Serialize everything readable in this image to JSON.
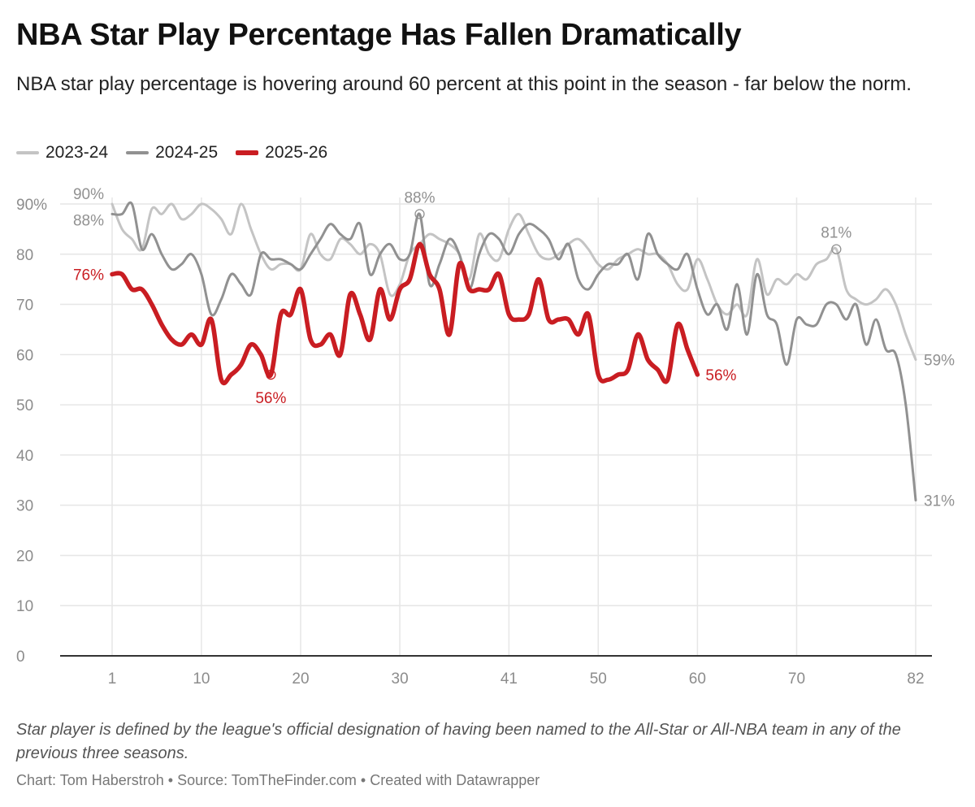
{
  "header": {
    "title": "NBA Star Play Percentage Has Fallen Dramatically",
    "subtitle": "NBA star play percentage is hovering around 60 percent at this point in the season - far below the norm."
  },
  "notes": "Star player is defined by the league's official designation of having been named to the All-Star or All-NBA team in any of the previous three seasons.",
  "footer": {
    "chart_credit": "Chart: Tom Haberstroh",
    "source": "Source: TomTheFinder.com",
    "tool": "Created with Datawrapper",
    "separator": "•"
  },
  "colors": {
    "s2324": "#c4c4c4",
    "s2425": "#919191",
    "s2526": "#c91d22",
    "grid": "#e6e6e6",
    "axis": "#333333",
    "tick": "#8c8c8c"
  },
  "chart_data": {
    "type": "line",
    "xlabel": "",
    "ylabel": "",
    "xlim": [
      1,
      82
    ],
    "ylim": [
      0,
      90
    ],
    "y_ticks": [
      0,
      10,
      20,
      30,
      40,
      50,
      60,
      70,
      80,
      90
    ],
    "y_tick_labels": [
      "0",
      "10",
      "20",
      "30",
      "40",
      "50",
      "60",
      "70",
      "80",
      "90%"
    ],
    "x_ticks": [
      1,
      10,
      20,
      30,
      41,
      50,
      60,
      70,
      82
    ],
    "x_tick_labels": [
      "1",
      "10",
      "20",
      "30",
      "41",
      "50",
      "60",
      "70",
      "82"
    ],
    "grid": true,
    "legend_position": "top-left",
    "series": [
      {
        "name": "2023-24",
        "color_key": "s2324",
        "width": "thin",
        "points": [
          [
            1,
            90
          ],
          [
            2,
            85
          ],
          [
            3,
            83
          ],
          [
            4,
            81
          ],
          [
            5,
            89
          ],
          [
            6,
            88
          ],
          [
            7,
            90
          ],
          [
            8,
            87
          ],
          [
            9,
            88
          ],
          [
            10,
            90
          ],
          [
            11,
            89
          ],
          [
            12,
            87
          ],
          [
            13,
            84
          ],
          [
            14,
            90
          ],
          [
            15,
            85
          ],
          [
            16,
            80
          ],
          [
            17,
            77
          ],
          [
            18,
            78
          ],
          [
            19,
            78
          ],
          [
            20,
            77
          ],
          [
            21,
            84
          ],
          [
            22,
            80
          ],
          [
            23,
            79
          ],
          [
            24,
            83
          ],
          [
            25,
            82
          ],
          [
            26,
            80
          ],
          [
            27,
            82
          ],
          [
            28,
            80
          ],
          [
            29,
            72
          ],
          [
            30,
            74
          ],
          [
            31,
            80
          ],
          [
            32,
            82
          ],
          [
            33,
            84
          ],
          [
            34,
            83
          ],
          [
            35,
            82
          ],
          [
            36,
            80
          ],
          [
            37,
            75
          ],
          [
            38,
            84
          ],
          [
            39,
            80
          ],
          [
            40,
            79
          ],
          [
            41,
            85
          ],
          [
            42,
            88
          ],
          [
            43,
            84
          ],
          [
            44,
            80
          ],
          [
            45,
            79
          ],
          [
            46,
            80
          ],
          [
            47,
            82
          ],
          [
            48,
            83
          ],
          [
            49,
            81
          ],
          [
            50,
            78
          ],
          [
            51,
            77
          ],
          [
            52,
            79
          ],
          [
            53,
            80
          ],
          [
            54,
            81
          ],
          [
            55,
            80
          ],
          [
            56,
            80
          ],
          [
            57,
            78
          ],
          [
            58,
            74
          ],
          [
            59,
            73
          ],
          [
            60,
            79
          ],
          [
            61,
            75
          ],
          [
            62,
            70
          ],
          [
            63,
            68
          ],
          [
            64,
            70
          ],
          [
            65,
            68
          ],
          [
            66,
            79
          ],
          [
            67,
            72
          ],
          [
            68,
            75
          ],
          [
            69,
            74
          ],
          [
            70,
            76
          ],
          [
            71,
            75
          ],
          [
            72,
            78
          ],
          [
            73,
            79
          ],
          [
            74,
            81
          ],
          [
            75,
            73
          ],
          [
            76,
            71
          ],
          [
            77,
            70
          ],
          [
            78,
            71
          ],
          [
            79,
            73
          ],
          [
            80,
            70
          ],
          [
            81,
            64
          ],
          [
            82,
            59
          ]
        ]
      },
      {
        "name": "2024-25",
        "color_key": "s2425",
        "width": "thin",
        "points": [
          [
            1,
            88
          ],
          [
            2,
            88
          ],
          [
            3,
            90
          ],
          [
            4,
            81
          ],
          [
            5,
            84
          ],
          [
            6,
            80
          ],
          [
            7,
            77
          ],
          [
            8,
            78
          ],
          [
            9,
            80
          ],
          [
            10,
            76
          ],
          [
            11,
            68
          ],
          [
            12,
            71
          ],
          [
            13,
            76
          ],
          [
            14,
            74
          ],
          [
            15,
            72
          ],
          [
            16,
            80
          ],
          [
            17,
            79
          ],
          [
            18,
            79
          ],
          [
            19,
            78
          ],
          [
            20,
            77
          ],
          [
            21,
            80
          ],
          [
            22,
            83
          ],
          [
            23,
            86
          ],
          [
            24,
            84
          ],
          [
            25,
            83
          ],
          [
            26,
            86
          ],
          [
            27,
            76
          ],
          [
            28,
            80
          ],
          [
            29,
            82
          ],
          [
            30,
            79
          ],
          [
            31,
            80
          ],
          [
            32,
            88
          ],
          [
            33,
            74
          ],
          [
            34,
            78
          ],
          [
            35,
            83
          ],
          [
            36,
            80
          ],
          [
            37,
            73
          ],
          [
            38,
            80
          ],
          [
            39,
            84
          ],
          [
            40,
            83
          ],
          [
            41,
            80
          ],
          [
            42,
            84
          ],
          [
            43,
            86
          ],
          [
            44,
            85
          ],
          [
            45,
            83
          ],
          [
            46,
            79
          ],
          [
            47,
            82
          ],
          [
            48,
            75
          ],
          [
            49,
            73
          ],
          [
            50,
            76
          ],
          [
            51,
            78
          ],
          [
            52,
            78
          ],
          [
            53,
            80
          ],
          [
            54,
            75
          ],
          [
            55,
            84
          ],
          [
            56,
            80
          ],
          [
            57,
            78
          ],
          [
            58,
            77
          ],
          [
            59,
            80
          ],
          [
            60,
            73
          ],
          [
            61,
            68
          ],
          [
            62,
            70
          ],
          [
            63,
            65
          ],
          [
            64,
            74
          ],
          [
            65,
            64
          ],
          [
            66,
            76
          ],
          [
            67,
            68
          ],
          [
            68,
            66
          ],
          [
            69,
            58
          ],
          [
            70,
            67
          ],
          [
            71,
            66
          ],
          [
            72,
            66
          ],
          [
            73,
            70
          ],
          [
            74,
            70
          ],
          [
            75,
            67
          ],
          [
            76,
            70
          ],
          [
            77,
            62
          ],
          [
            78,
            67
          ],
          [
            79,
            61
          ],
          [
            80,
            60
          ],
          [
            81,
            50
          ],
          [
            82,
            31
          ]
        ]
      },
      {
        "name": "2025-26",
        "color_key": "s2526",
        "width": "thick",
        "points": [
          [
            1,
            76
          ],
          [
            2,
            76
          ],
          [
            3,
            73
          ],
          [
            4,
            73
          ],
          [
            5,
            70
          ],
          [
            6,
            66
          ],
          [
            7,
            63
          ],
          [
            8,
            62
          ],
          [
            9,
            64
          ],
          [
            10,
            62
          ],
          [
            11,
            67
          ],
          [
            12,
            55
          ],
          [
            13,
            56
          ],
          [
            14,
            58
          ],
          [
            15,
            62
          ],
          [
            16,
            60
          ],
          [
            17,
            56
          ],
          [
            18,
            68
          ],
          [
            19,
            68
          ],
          [
            20,
            73
          ],
          [
            21,
            63
          ],
          [
            22,
            62
          ],
          [
            23,
            64
          ],
          [
            24,
            60
          ],
          [
            25,
            72
          ],
          [
            26,
            68
          ],
          [
            27,
            63
          ],
          [
            28,
            73
          ],
          [
            29,
            67
          ],
          [
            30,
            73
          ],
          [
            31,
            75
          ],
          [
            32,
            82
          ],
          [
            33,
            76
          ],
          [
            34,
            73
          ],
          [
            35,
            64
          ],
          [
            36,
            78
          ],
          [
            37,
            73
          ],
          [
            38,
            73
          ],
          [
            39,
            73
          ],
          [
            40,
            76
          ],
          [
            41,
            68
          ],
          [
            42,
            67
          ],
          [
            43,
            68
          ],
          [
            44,
            75
          ],
          [
            45,
            67
          ],
          [
            46,
            67
          ],
          [
            47,
            67
          ],
          [
            48,
            64
          ],
          [
            49,
            68
          ],
          [
            50,
            56
          ],
          [
            51,
            55
          ],
          [
            52,
            56
          ],
          [
            53,
            57
          ],
          [
            54,
            64
          ],
          [
            55,
            59
          ],
          [
            56,
            57
          ],
          [
            57,
            55
          ],
          [
            58,
            66
          ],
          [
            59,
            61
          ],
          [
            60,
            56
          ]
        ]
      }
    ],
    "annotations": [
      {
        "text": "90%",
        "series": "2023-24",
        "x": 1,
        "y": 90,
        "color_key": "s2425",
        "anchor": "end-above"
      },
      {
        "text": "88%",
        "series": "2024-25",
        "x": 1,
        "y": 88,
        "color_key": "s2425",
        "anchor": "end-below"
      },
      {
        "text": "76%",
        "series": "2025-26",
        "x": 1,
        "y": 76,
        "color_key": "s2526",
        "anchor": "end"
      },
      {
        "text": "88%",
        "series": "2024-25",
        "x": 32,
        "y": 88,
        "color_key": "s2425",
        "anchor": "above",
        "marker": true
      },
      {
        "text": "56%",
        "series": "2025-26",
        "x": 17,
        "y": 56,
        "color_key": "s2526",
        "anchor": "below",
        "marker": true
      },
      {
        "text": "81%",
        "series": "2023-24",
        "x": 74,
        "y": 81,
        "color_key": "s2425",
        "anchor": "above",
        "marker": true
      },
      {
        "text": "56%",
        "series": "2025-26",
        "x": 60,
        "y": 56,
        "color_key": "s2526",
        "anchor": "start"
      },
      {
        "text": "59%",
        "series": "2023-24",
        "x": 82,
        "y": 59,
        "color_key": "s2425",
        "anchor": "start"
      },
      {
        "text": "31%",
        "series": "2024-25",
        "x": 82,
        "y": 31,
        "color_key": "s2425",
        "anchor": "start"
      }
    ]
  }
}
